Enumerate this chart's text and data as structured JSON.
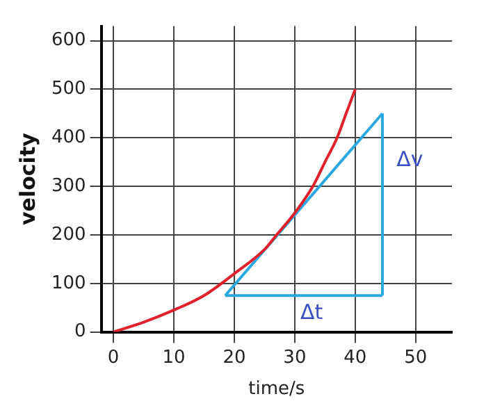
{
  "chart_data": {
    "type": "line",
    "xlabel": "time/s",
    "ylabel": "velocity",
    "xlim": [
      -2,
      56
    ],
    "ylim": [
      0,
      630
    ],
    "xticks": [
      0,
      10,
      20,
      30,
      40,
      50
    ],
    "yticks": [
      0,
      100,
      200,
      300,
      400,
      500,
      600
    ],
    "grid": true,
    "legend": false,
    "marker": "none",
    "line_style": "solid",
    "series": [
      {
        "color": "#e0202a",
        "x": [
          0,
          5,
          10,
          15,
          20,
          25,
          27,
          30,
          33,
          35,
          37,
          38.5,
          40
        ],
        "values": [
          0,
          20,
          45,
          75,
          120,
          170,
          200,
          245,
          300,
          350,
          400,
          450,
          500
        ]
      },
      {
        "color": "#29a8e0",
        "x": [
          18.5,
          44.5
        ],
        "values": [
          75,
          450
        ]
      },
      {
        "color": "#29a8e0",
        "x": [
          44.5,
          44.5
        ],
        "values": [
          450,
          75
        ]
      },
      {
        "color": "#29a8e0",
        "x": [
          18.5,
          44.5
        ],
        "values": [
          75,
          75
        ]
      }
    ],
    "annotations": [
      "Δv",
      "Δt"
    ]
  }
}
